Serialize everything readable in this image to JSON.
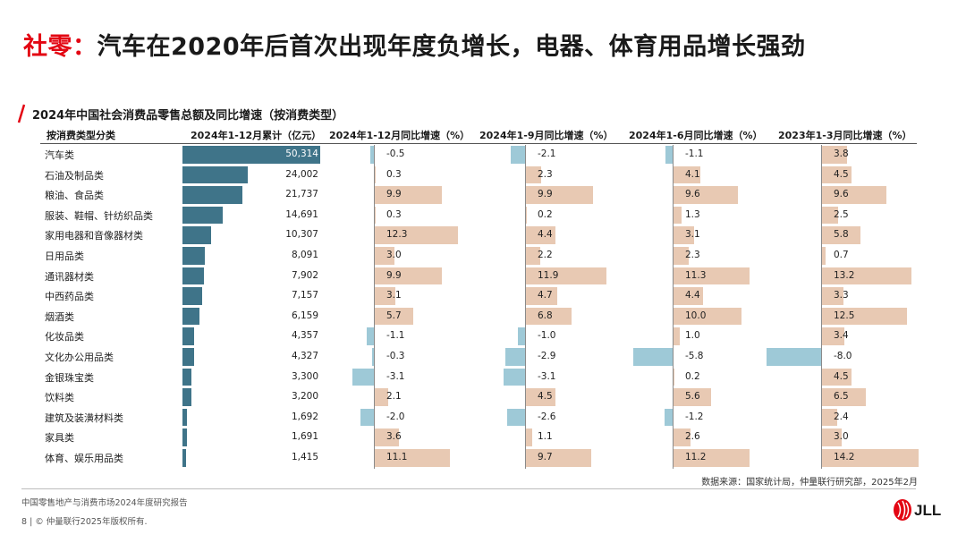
{
  "title_prefix": "社零：",
  "title_main": "汽车在2020年后首次出现年度负增长，电器、体育用品增长强劲",
  "accent_color": "#e30613",
  "bar_color": "#3f7489",
  "pos_color": "#e8c9b3",
  "neg_color": "#9ec9d7",
  "chart_data": {
    "type": "table",
    "title": "2024年中国社会消费品零售总额及同比增速（按消费类型）",
    "columns": [
      "按消费类型分类",
      "2024年1-12月累计（亿元）",
      "2024年1-12月同比增速（%）",
      "2024年1-9月同比增速（%）",
      "2024年1-6月同比增速（%）",
      "2023年1-3月同比增速（%）"
    ],
    "categories": [
      "汽车类",
      "石油及制品类",
      "粮油、食品类",
      "服装、鞋帽、针纺织品类",
      "家用电器和音像器材类",
      "日用品类",
      "通讯器材类",
      "中西药品类",
      "烟酒类",
      "化妆品类",
      "文化办公用品类",
      "金银珠宝类",
      "饮料类",
      "建筑及装潢材料类",
      "家具类",
      "体育、娱乐用品类"
    ],
    "totals": [
      50314,
      24002,
      21737,
      14691,
      10307,
      8091,
      7902,
      7157,
      6159,
      4357,
      4327,
      3300,
      3200,
      1692,
      1691,
      1415
    ],
    "totals_label": [
      "50,314",
      "24,002",
      "21,737",
      "14,691",
      "10,307",
      "8,091",
      "7,902",
      "7,157",
      "6,159",
      "4,357",
      "4,327",
      "3,300",
      "3,200",
      "1,692",
      "1,691",
      "1,415"
    ],
    "series": [
      {
        "name": "2024年1-12月同比增速（%）",
        "values": [
          -0.5,
          0.3,
          9.9,
          0.3,
          12.3,
          3.0,
          9.9,
          3.1,
          5.7,
          -1.1,
          -0.3,
          -3.1,
          2.1,
          -2.0,
          3.6,
          11.1
        ],
        "labels": [
          "-0.5",
          "0.3",
          "9.9",
          "0.3",
          "12.3",
          "3.0",
          "9.9",
          "3.1",
          "5.7",
          "-1.1",
          "-0.3",
          "-3.1",
          "2.1",
          "-2.0",
          "3.6",
          "11.1"
        ]
      },
      {
        "name": "2024年1-9月同比增速（%）",
        "values": [
          -2.1,
          2.3,
          9.9,
          0.2,
          4.4,
          2.2,
          11.9,
          4.7,
          6.8,
          -1.0,
          -2.9,
          -3.1,
          4.5,
          -2.6,
          1.1,
          9.7
        ],
        "labels": [
          "-2.1",
          "2.3",
          "9.9",
          "0.2",
          "4.4",
          "2.2",
          "11.9",
          "4.7",
          "6.8",
          "-1.0",
          "-2.9",
          "-3.1",
          "4.5",
          "-2.6",
          "1.1",
          "9.7"
        ]
      },
      {
        "name": "2024年1-6月同比增速（%）",
        "values": [
          -1.1,
          4.1,
          9.6,
          1.3,
          3.1,
          2.3,
          11.3,
          4.4,
          10.0,
          1.0,
          -5.8,
          0.2,
          5.6,
          -1.2,
          2.6,
          11.2
        ],
        "labels": [
          "-1.1",
          "4.1",
          "9.6",
          "1.3",
          "3.1",
          "2.3",
          "11.3",
          "4.4",
          "10.0",
          "1.0",
          "-5.8",
          "0.2",
          "5.6",
          "-1.2",
          "2.6",
          "11.2"
        ]
      },
      {
        "name": "2023年1-3月同比增速（%）",
        "values": [
          3.8,
          4.5,
          9.6,
          2.5,
          5.8,
          0.7,
          13.2,
          3.3,
          12.5,
          3.4,
          -8.0,
          4.5,
          6.5,
          2.4,
          3.0,
          14.2
        ],
        "labels": [
          "3.8",
          "4.5",
          "9.6",
          "2.5",
          "5.8",
          "0.7",
          "13.2",
          "3.3",
          "12.5",
          "3.4",
          "-8.0",
          "4.5",
          "6.5",
          "2.4",
          "3.0",
          "14.2"
        ]
      }
    ]
  },
  "source": "数据来源：国家统计局，仲量联行研究部，2025年2月",
  "footer_report": "中国零售地产与消费市场2024年度研究报告",
  "footer_page": "8 | © 仲量联行2025年版权所有.",
  "logo_text": "JLL"
}
